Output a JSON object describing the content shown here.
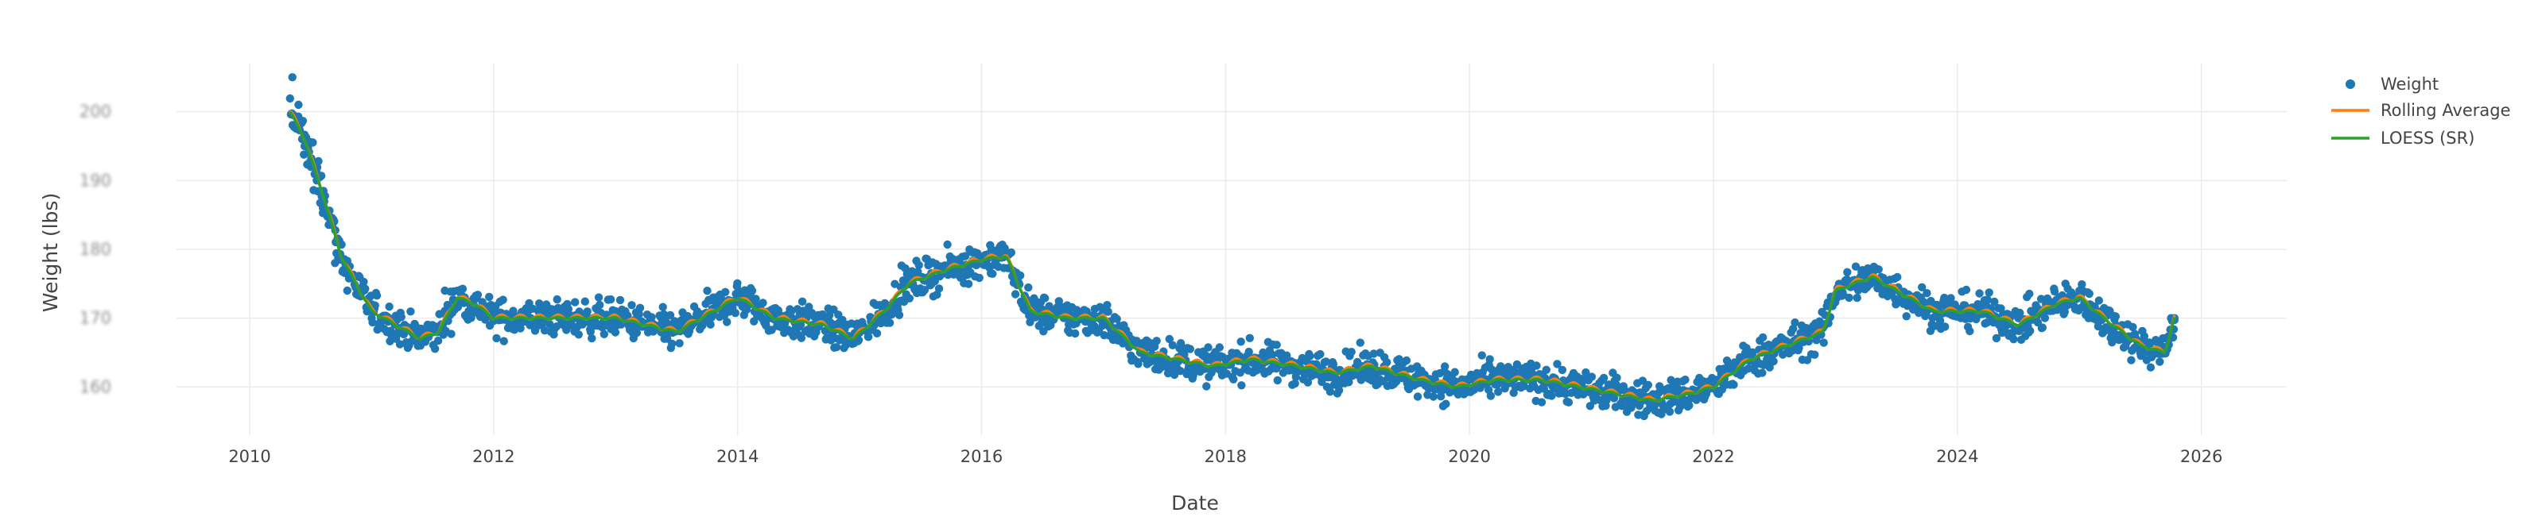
{
  "chart_data": {
    "type": "scatter",
    "xlabel": "Date",
    "ylabel": "Weight (lbs)",
    "x_ticks": [
      "2010",
      "2012",
      "2014",
      "2016",
      "2018",
      "2020",
      "2022",
      "2024",
      "2026"
    ],
    "x_tick_years": [
      2010,
      2012,
      2014,
      2016,
      2018,
      2020,
      2022,
      2024,
      2026
    ],
    "xlim": [
      2009.4,
      2026.7
    ],
    "y_ticks": [
      "160",
      "170",
      "180",
      "190",
      "200"
    ],
    "y_tick_values": [
      160,
      170,
      180,
      190,
      200
    ],
    "ylim": [
      153,
      207
    ],
    "grid": true,
    "legend_position": "top-right",
    "legend": [
      "Weight",
      "Rolling Average",
      "LOESS (SR)"
    ],
    "colors": {
      "weight": "#1f77b4",
      "rolling": "#ff7f0e",
      "loess": "#2ca02c",
      "grid": "#ebebeb"
    },
    "series": [
      {
        "name": "Weight",
        "type": "scatter",
        "noise_lbs": 1.3
      },
      {
        "name": "Rolling Average",
        "type": "line"
      },
      {
        "name": "LOESS (SR)",
        "type": "line"
      }
    ],
    "trend": {
      "x": [
        2010.33,
        2010.45,
        2010.6,
        2010.75,
        2010.9,
        2011.0,
        2011.2,
        2011.4,
        2011.55,
        2011.7,
        2011.85,
        2012.0,
        2012.5,
        2013.0,
        2013.5,
        2013.9,
        2014.0,
        2014.3,
        2014.7,
        2014.95,
        2015.2,
        2015.4,
        2015.7,
        2016.0,
        2016.2,
        2016.4,
        2016.7,
        2017.0,
        2017.3,
        2017.6,
        2017.9,
        2018.2,
        2018.6,
        2018.9,
        2019.2,
        2019.6,
        2019.9,
        2020.2,
        2020.6,
        2020.9,
        2021.2,
        2021.5,
        2021.8,
        2022.0,
        2022.3,
        2022.6,
        2022.9,
        2023.0,
        2023.3,
        2023.5,
        2023.8,
        2024.0,
        2024.2,
        2024.5,
        2024.8,
        2025.0,
        2025.2,
        2025.5,
        2025.7,
        2025.78
      ],
      "y": [
        200,
        196,
        188,
        179,
        174,
        171,
        169,
        167,
        168,
        173,
        172,
        170,
        170,
        170,
        168,
        172,
        173,
        170,
        169,
        167,
        171,
        175,
        177,
        178.5,
        179,
        171,
        170,
        170,
        165,
        164,
        163,
        164,
        163,
        162,
        163,
        161,
        160,
        161,
        161,
        160,
        159,
        158,
        159,
        160,
        164,
        166,
        168,
        174,
        176,
        174,
        171,
        171,
        171,
        169,
        172,
        173,
        170,
        166,
        165,
        170
      ]
    },
    "weight_samples": {
      "x": [
        2010.35,
        2010.4,
        2010.45,
        2010.5,
        2010.55,
        2010.6,
        2010.7,
        2010.8,
        2011.0,
        2011.2,
        2011.4,
        2011.6,
        2011.8,
        2012.2,
        2012.6,
        2013.0,
        2013.4,
        2013.8,
        2014.1,
        2014.5,
        2014.85,
        2015.1,
        2015.4,
        2015.7,
        2016.0,
        2016.15,
        2016.5,
        2016.9,
        2017.3,
        2017.7,
        2018.1,
        2018.5,
        2018.9,
        2019.3,
        2019.7,
        2020.1,
        2020.5,
        2020.9,
        2021.3,
        2021.7,
        2022.1,
        2022.5,
        2022.9,
        2023.3,
        2023.7,
        2024.1,
        2024.5,
        2024.9,
        2025.3,
        2025.6,
        2025.78
      ],
      "y": [
        205,
        201,
        195,
        192,
        190,
        186,
        178,
        174,
        170,
        167,
        166,
        174,
        171,
        170,
        169,
        171,
        167,
        173,
        172,
        170,
        167,
        170,
        175,
        177,
        178,
        179,
        170,
        169,
        165,
        163,
        164,
        164,
        162,
        163,
        160,
        161,
        161,
        160,
        159,
        158,
        162,
        165,
        169,
        176,
        173,
        171,
        170,
        172,
        169,
        165,
        170
      ]
    }
  }
}
